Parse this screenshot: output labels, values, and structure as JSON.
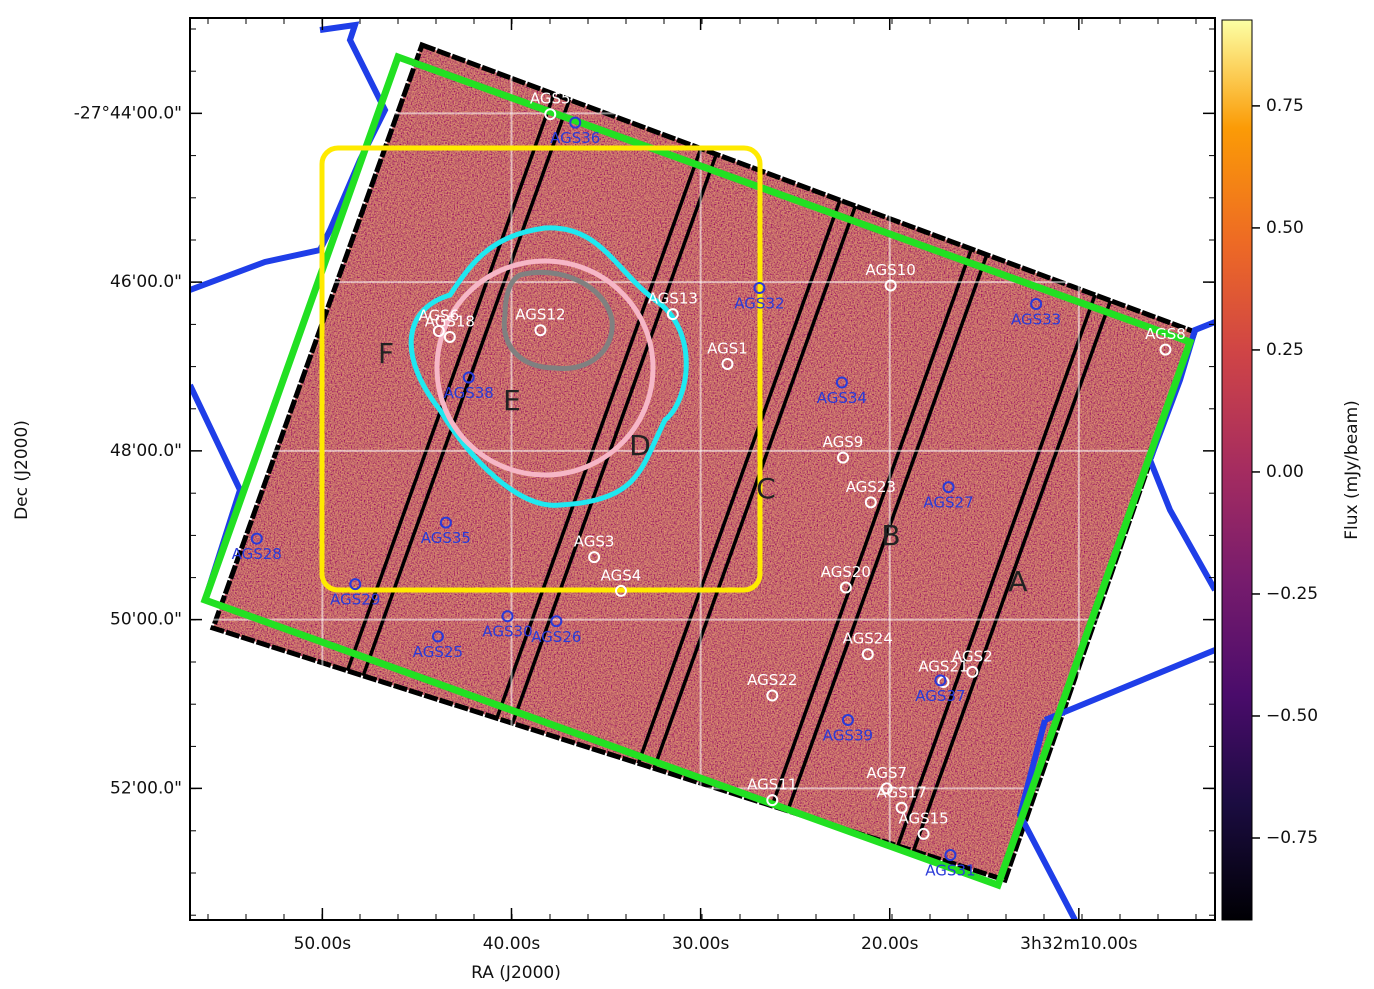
{
  "chart_data": {
    "type": "scatter",
    "xlabel": "RA (J2000)",
    "ylabel": "Dec (J2000)",
    "colorbar_label": "Flux (mJy/beam)",
    "xlim": [
      57,
      2.8
    ],
    "ylim": [
      -53.56,
      -42.87
    ],
    "xticks": [
      {
        "value": 50,
        "label": "50.00s"
      },
      {
        "value": 40,
        "label": "40.00s"
      },
      {
        "value": 30,
        "label": "30.00s"
      },
      {
        "value": 20,
        "label": "20.00s"
      },
      {
        "value": 10,
        "label": "3h32m10.00s"
      }
    ],
    "yticks": [
      {
        "value": -44,
        "label": "-27°44'00.0\""
      },
      {
        "value": -46,
        "label": "46'00.0\""
      },
      {
        "value": -48,
        "label": "48'00.0\""
      },
      {
        "value": -50,
        "label": "50'00.0\""
      },
      {
        "value": -52,
        "label": "52'00.0\""
      }
    ],
    "grid": true,
    "colormap": "inferno",
    "clim": [
      -0.918,
      0.926
    ],
    "cticks": [
      0.75,
      {
        "value": 0.5,
        "label": "0.50"
      },
      0.25,
      {
        "value": 0,
        "label": "0.00"
      },
      {
        "value": -0.25,
        "label": "−0.25"
      },
      {
        "value": -0.5,
        "label": "−0.50"
      },
      {
        "value": -0.75,
        "label": "−0.75"
      }
    ],
    "regions": [
      "A",
      "B",
      "C",
      "D",
      "E",
      "F"
    ],
    "series": [
      {
        "color": "#ffffff",
        "labels": [
          "AGS5",
          "AGS10",
          "AGS13",
          "AGS12",
          "AGS6",
          "AGS18",
          "AGS1",
          "AGS8",
          "AGS9",
          "AGS23",
          "AGS3",
          "AGS4",
          "AGS20",
          "AGS24",
          "AGS2",
          "AGS21",
          "AGS22",
          "AGS7",
          "AGS17",
          "AGS15",
          "AGS11"
        ],
        "x": [
          37.95,
          19.95,
          31.47,
          38.47,
          43.84,
          43.26,
          28.58,
          5.42,
          22.47,
          21.0,
          35.63,
          34.21,
          22.32,
          21.16,
          15.63,
          17.16,
          26.21,
          20.16,
          19.37,
          18.21,
          26.21
        ],
        "y": [
          -44.01,
          -46.04,
          -46.38,
          -46.57,
          -46.58,
          -46.65,
          -46.97,
          -46.8,
          -48.08,
          -48.61,
          -49.26,
          -49.66,
          -49.62,
          -50.41,
          -50.62,
          -50.74,
          -50.9,
          -52.0,
          -52.23,
          -52.54,
          -52.14
        ]
      },
      {
        "color": "#2a3ad8",
        "labels": [
          "AGS36",
          "AGS32",
          "AGS33",
          "AGS34",
          "AGS38",
          "AGS27",
          "AGS35",
          "AGS28",
          "AGS29",
          "AGS30",
          "AGS26",
          "AGS25",
          "AGS37",
          "AGS39",
          "AGS31"
        ],
        "x": [
          36.63,
          26.89,
          12.26,
          22.53,
          42.26,
          16.89,
          43.47,
          53.47,
          48.26,
          40.21,
          37.63,
          43.89,
          17.32,
          22.21,
          16.79
        ],
        "y": [
          -44.11,
          -46.07,
          -46.26,
          -47.19,
          -47.13,
          -48.43,
          -48.85,
          -49.04,
          -49.58,
          -49.96,
          -50.02,
          -50.2,
          -50.72,
          -51.19,
          -52.79
        ]
      }
    ]
  }
}
